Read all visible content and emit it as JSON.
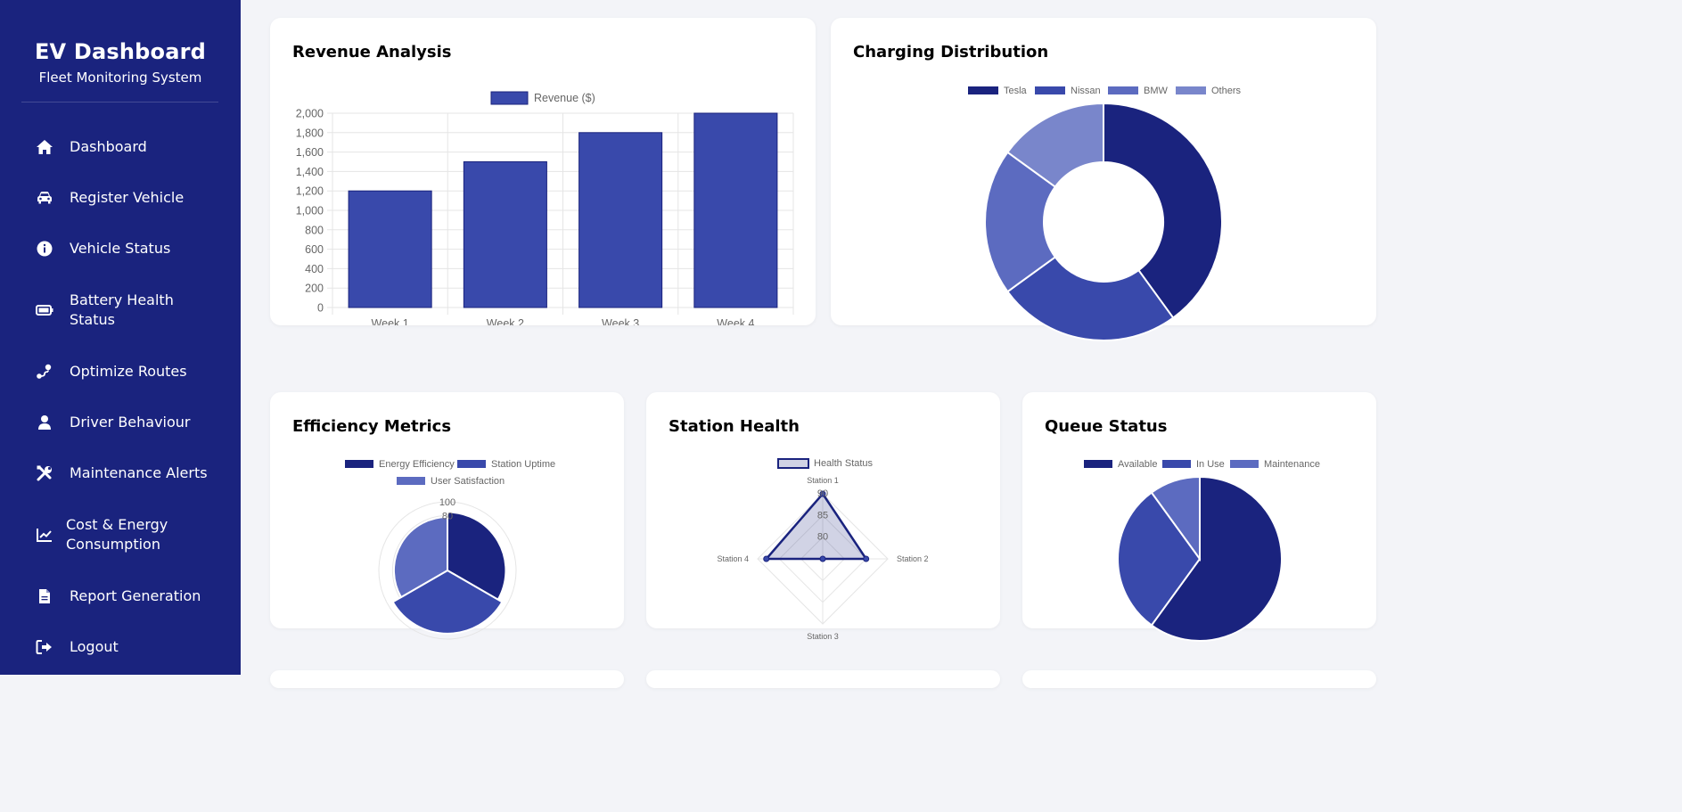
{
  "sidebar": {
    "title": "EV Dashboard",
    "subtitle": "Fleet Monitoring System",
    "items": [
      {
        "label": "Dashboard",
        "icon": "home-icon"
      },
      {
        "label": "Register Vehicle",
        "icon": "car-icon"
      },
      {
        "label": "Vehicle Status",
        "icon": "info-icon"
      },
      {
        "label": "Battery Health Status",
        "icon": "battery-icon"
      },
      {
        "label": "Optimize Routes",
        "icon": "route-icon"
      },
      {
        "label": "Driver Behaviour",
        "icon": "user-icon"
      },
      {
        "label": "Maintenance Alerts",
        "icon": "tools-icon"
      },
      {
        "label": "Cost & Energy Consumption",
        "icon": "chart-line-icon"
      },
      {
        "label": "Report Generation",
        "icon": "file-icon"
      },
      {
        "label": "Logout",
        "icon": "logout-icon"
      }
    ]
  },
  "cards": {
    "revenue": {
      "title": "Revenue Analysis"
    },
    "charging": {
      "title": "Charging Distribution"
    },
    "efficiency": {
      "title": "Efficiency Metrics"
    },
    "station": {
      "title": "Station Health"
    },
    "queue": {
      "title": "Queue Status"
    }
  },
  "colors": {
    "sidebar": "#1a237e",
    "c1": "#1a237e",
    "c2": "#3949ab",
    "c3": "#5c6bc0",
    "c4": "#7986cb",
    "background": "#f3f4f8"
  },
  "chart_data": [
    {
      "id": "revenue",
      "type": "bar",
      "categories": [
        "Week 1",
        "Week 2",
        "Week 3",
        "Week 4"
      ],
      "series": [
        {
          "name": "Revenue ($)",
          "values": [
            1200,
            1500,
            1800,
            2000
          ]
        }
      ],
      "yticks": [
        "0",
        "200",
        "400",
        "600",
        "800",
        "1,000",
        "1,200",
        "1,400",
        "1,600",
        "1,800",
        "2,000"
      ],
      "ylim": [
        0,
        2000
      ],
      "grid": true,
      "legend": "top"
    },
    {
      "id": "charging",
      "type": "doughnut",
      "labels": [
        "Tesla",
        "Nissan",
        "BMW",
        "Others"
      ],
      "values": [
        40,
        25,
        20,
        15
      ],
      "legend": "top"
    },
    {
      "id": "efficiency",
      "type": "polarArea",
      "labels": [
        "Energy Efficiency",
        "Station Uptime",
        "User Satisfaction"
      ],
      "values": [
        85,
        92,
        78
      ],
      "ticks": [
        "100",
        "80"
      ],
      "rmax": 100,
      "legend": "top"
    },
    {
      "id": "station",
      "type": "radar",
      "labels": [
        "Station 1",
        "Station 2",
        "Station 3",
        "Station 4"
      ],
      "series": [
        {
          "name": "Health Status",
          "values": [
            90,
            85,
            75,
            88
          ]
        }
      ],
      "ticks": [
        "80",
        "85",
        "90"
      ],
      "rmin": 75,
      "rmax": 90,
      "legend": "top"
    },
    {
      "id": "queue",
      "type": "pie",
      "labels": [
        "Available",
        "In Use",
        "Maintenance"
      ],
      "values": [
        60,
        30,
        10
      ],
      "legend": "top"
    }
  ]
}
